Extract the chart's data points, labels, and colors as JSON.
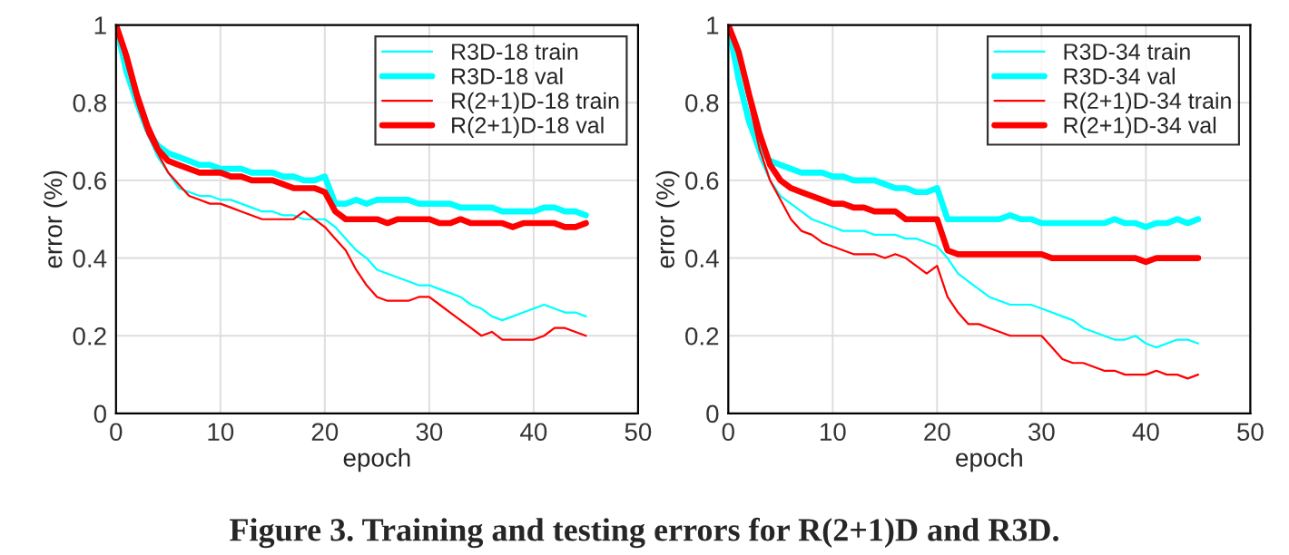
{
  "chart_data": [
    {
      "type": "line",
      "xlabel": "epoch",
      "ylabel": "error (%)",
      "xlim": [
        0,
        50
      ],
      "ylim": [
        0,
        1
      ],
      "xticks": [
        0,
        10,
        20,
        30,
        40,
        50
      ],
      "yticks": [
        0,
        0.2,
        0.4,
        0.6,
        0.8,
        1
      ],
      "grid": true,
      "legend": "top right",
      "x": [
        0,
        1,
        2,
        3,
        4,
        5,
        6,
        7,
        8,
        9,
        10,
        11,
        12,
        13,
        14,
        15,
        16,
        17,
        18,
        19,
        20,
        21,
        22,
        23,
        24,
        25,
        26,
        27,
        28,
        29,
        30,
        31,
        32,
        33,
        34,
        35,
        36,
        37,
        38,
        39,
        40,
        41,
        42,
        43,
        44,
        45
      ],
      "series": [
        {
          "name": "R3D-18 train",
          "color": "#00ffff",
          "values": [
            1,
            0.88,
            0.8,
            0.72,
            0.66,
            0.62,
            0.58,
            0.57,
            0.56,
            0.56,
            0.55,
            0.55,
            0.54,
            0.53,
            0.52,
            0.52,
            0.51,
            0.51,
            0.5,
            0.5,
            0.5,
            0.48,
            0.45,
            0.42,
            0.4,
            0.37,
            0.36,
            0.35,
            0.34,
            0.33,
            0.33,
            0.32,
            0.31,
            0.3,
            0.28,
            0.27,
            0.25,
            0.24,
            0.25,
            0.26,
            0.27,
            0.28,
            0.27,
            0.26,
            0.26,
            0.25
          ]
        },
        {
          "name": "R3D-18 val",
          "color": "#00ffff",
          "values": [
            1,
            0.88,
            0.8,
            0.73,
            0.69,
            0.67,
            0.66,
            0.65,
            0.64,
            0.64,
            0.63,
            0.63,
            0.63,
            0.62,
            0.62,
            0.62,
            0.61,
            0.61,
            0.6,
            0.6,
            0.61,
            0.54,
            0.54,
            0.55,
            0.54,
            0.55,
            0.55,
            0.55,
            0.55,
            0.54,
            0.54,
            0.54,
            0.54,
            0.53,
            0.53,
            0.53,
            0.53,
            0.52,
            0.52,
            0.52,
            0.52,
            0.53,
            0.53,
            0.52,
            0.52,
            0.51
          ]
        },
        {
          "name": "R(2+1)D-18 train",
          "color": "#ff0000",
          "values": [
            1,
            0.9,
            0.8,
            0.72,
            0.67,
            0.62,
            0.59,
            0.56,
            0.55,
            0.54,
            0.54,
            0.53,
            0.52,
            0.51,
            0.5,
            0.5,
            0.5,
            0.5,
            0.52,
            0.5,
            0.48,
            0.45,
            0.42,
            0.37,
            0.33,
            0.3,
            0.29,
            0.29,
            0.29,
            0.3,
            0.3,
            0.28,
            0.26,
            0.24,
            0.22,
            0.2,
            0.21,
            0.19,
            0.19,
            0.19,
            0.19,
            0.2,
            0.22,
            0.22,
            0.21,
            0.2
          ]
        },
        {
          "name": "R(2+1)D-18 val",
          "color": "#ff0000",
          "values": [
            1,
            0.92,
            0.82,
            0.74,
            0.68,
            0.65,
            0.64,
            0.63,
            0.62,
            0.62,
            0.62,
            0.61,
            0.61,
            0.6,
            0.6,
            0.6,
            0.59,
            0.58,
            0.58,
            0.58,
            0.57,
            0.52,
            0.5,
            0.5,
            0.5,
            0.5,
            0.49,
            0.5,
            0.5,
            0.5,
            0.5,
            0.49,
            0.49,
            0.5,
            0.49,
            0.49,
            0.49,
            0.49,
            0.48,
            0.49,
            0.49,
            0.49,
            0.49,
            0.48,
            0.48,
            0.49
          ]
        }
      ],
      "annotations": [
        "Figure 3. Training and testing errors for R(2+1)D and R3D."
      ]
    },
    {
      "type": "line",
      "xlabel": "epoch",
      "ylabel": "error (%)",
      "xlim": [
        0,
        50
      ],
      "ylim": [
        0,
        1
      ],
      "xticks": [
        0,
        10,
        20,
        30,
        40,
        50
      ],
      "yticks": [
        0,
        0.2,
        0.4,
        0.6,
        0.8,
        1
      ],
      "grid": true,
      "legend": "top right",
      "x": [
        0,
        1,
        2,
        3,
        4,
        5,
        6,
        7,
        8,
        9,
        10,
        11,
        12,
        13,
        14,
        15,
        16,
        17,
        18,
        19,
        20,
        21,
        22,
        23,
        24,
        25,
        26,
        27,
        28,
        29,
        30,
        31,
        32,
        33,
        34,
        35,
        36,
        37,
        38,
        39,
        40,
        41,
        42,
        43,
        44,
        45
      ],
      "series": [
        {
          "name": "R3D-34 train",
          "color": "#00ffff",
          "values": [
            1,
            0.85,
            0.74,
            0.66,
            0.6,
            0.56,
            0.54,
            0.52,
            0.5,
            0.49,
            0.48,
            0.47,
            0.47,
            0.47,
            0.46,
            0.46,
            0.46,
            0.45,
            0.45,
            0.44,
            0.43,
            0.4,
            0.36,
            0.34,
            0.32,
            0.3,
            0.29,
            0.28,
            0.28,
            0.28,
            0.27,
            0.26,
            0.25,
            0.24,
            0.22,
            0.21,
            0.2,
            0.19,
            0.19,
            0.2,
            0.18,
            0.17,
            0.18,
            0.19,
            0.19,
            0.18
          ]
        },
        {
          "name": "R3D-34 val",
          "color": "#00ffff",
          "values": [
            1,
            0.86,
            0.75,
            0.68,
            0.65,
            0.64,
            0.63,
            0.62,
            0.62,
            0.62,
            0.61,
            0.61,
            0.6,
            0.6,
            0.6,
            0.59,
            0.58,
            0.58,
            0.57,
            0.57,
            0.58,
            0.5,
            0.5,
            0.5,
            0.5,
            0.5,
            0.5,
            0.51,
            0.5,
            0.5,
            0.49,
            0.49,
            0.49,
            0.49,
            0.49,
            0.49,
            0.49,
            0.5,
            0.49,
            0.49,
            0.48,
            0.49,
            0.49,
            0.5,
            0.49,
            0.5
          ]
        },
        {
          "name": "R(2+1)D-34 train",
          "color": "#ff0000",
          "values": [
            1,
            0.92,
            0.8,
            0.68,
            0.6,
            0.55,
            0.5,
            0.47,
            0.46,
            0.44,
            0.43,
            0.42,
            0.41,
            0.41,
            0.41,
            0.4,
            0.41,
            0.4,
            0.38,
            0.36,
            0.38,
            0.3,
            0.26,
            0.23,
            0.23,
            0.22,
            0.21,
            0.2,
            0.2,
            0.2,
            0.2,
            0.17,
            0.14,
            0.13,
            0.13,
            0.12,
            0.11,
            0.11,
            0.1,
            0.1,
            0.1,
            0.11,
            0.1,
            0.1,
            0.09,
            0.1
          ]
        },
        {
          "name": "R(2+1)D-34 val",
          "color": "#ff0000",
          "values": [
            1,
            0.93,
            0.82,
            0.72,
            0.64,
            0.6,
            0.58,
            0.57,
            0.56,
            0.55,
            0.54,
            0.54,
            0.53,
            0.53,
            0.52,
            0.52,
            0.52,
            0.5,
            0.5,
            0.5,
            0.5,
            0.42,
            0.41,
            0.41,
            0.41,
            0.41,
            0.41,
            0.41,
            0.41,
            0.41,
            0.41,
            0.4,
            0.4,
            0.4,
            0.4,
            0.4,
            0.4,
            0.4,
            0.4,
            0.4,
            0.39,
            0.4,
            0.4,
            0.4,
            0.4,
            0.4
          ]
        }
      ]
    }
  ]
}
